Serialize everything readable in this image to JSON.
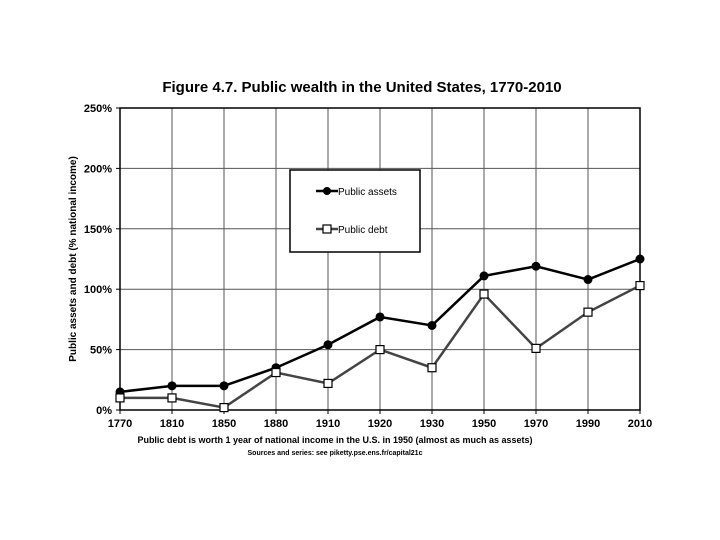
{
  "chart_data": {
    "type": "line",
    "title": "Figure 4.7. Public wealth in the United States, 1770-2010",
    "ylabel": "Public assets and debt (% national income)",
    "xlabel": "",
    "categories": [
      "1770",
      "1810",
      "1850",
      "1880",
      "1910",
      "1920",
      "1930",
      "1950",
      "1970",
      "1990",
      "2010"
    ],
    "ylim": [
      0,
      250
    ],
    "yticks": [
      0,
      50,
      100,
      150,
      200,
      250
    ],
    "ytick_labels": [
      "0%",
      "50%",
      "100%",
      "150%",
      "200%",
      "250%"
    ],
    "grid": true,
    "legend_position": "top-center",
    "series": [
      {
        "name": "Public assets",
        "marker": "filled-circle",
        "color": "#000000",
        "values": [
          15,
          20,
          20,
          35,
          54,
          77,
          70,
          111,
          119,
          108,
          125
        ]
      },
      {
        "name": "Public debt",
        "marker": "hollow-square",
        "color": "#444444",
        "values": [
          10,
          10,
          2,
          31,
          22,
          50,
          35,
          96,
          51,
          81,
          103
        ]
      }
    ],
    "annotations": [
      "Public debt is worth 1 year of national income in the U.S. in 1950 (almost as much as assets)",
      "Sources and series: see piketty.pse.ens.fr/capital21c"
    ]
  }
}
